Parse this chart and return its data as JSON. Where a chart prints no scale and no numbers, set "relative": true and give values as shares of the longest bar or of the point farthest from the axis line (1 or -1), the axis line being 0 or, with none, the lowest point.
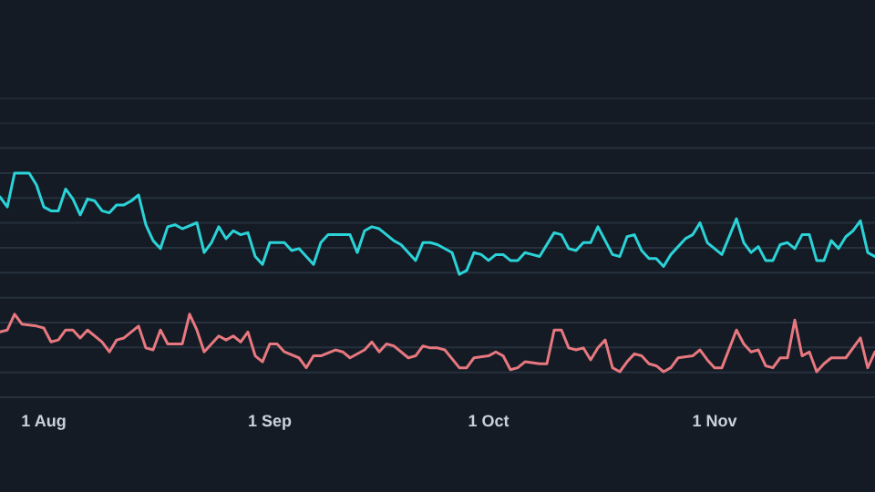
{
  "chart_data": {
    "type": "line",
    "relative": true,
    "grid": "y",
    "marker": "none",
    "line_style": "solid",
    "xlim": [
      "--07-26",
      "--11-23"
    ],
    "xticks": [
      {
        "value": "--08-01",
        "label": "1 Aug"
      },
      {
        "value": "--09-01",
        "label": "1 Sep"
      },
      {
        "value": "--10-01",
        "label": "1 Oct"
      },
      {
        "value": "--11-01",
        "label": "1 Nov"
      }
    ],
    "tick_labels": "x",
    "series": [
      {
        "color": "#2bd3d8",
        "x": [
          "--07-26",
          "--07-27",
          "--07-28",
          "--07-30",
          "--07-31",
          "--08-01",
          "--08-02",
          "--08-03",
          "--08-04",
          "--08-05",
          "--08-06",
          "--08-07",
          "--08-08",
          "--08-09",
          "--08-10",
          "--08-11",
          "--08-12",
          "--08-13",
          "--08-14",
          "--08-15",
          "--08-16",
          "--08-17",
          "--08-18",
          "--08-19",
          "--08-20",
          "--08-22",
          "--08-23",
          "--08-24",
          "--08-25",
          "--08-26",
          "--08-27",
          "--08-28",
          "--08-29",
          "--08-30",
          "--08-31",
          "--09-01",
          "--09-03",
          "--09-04",
          "--09-05",
          "--09-06",
          "--09-07",
          "--09-08",
          "--09-09",
          "--09-11",
          "--09-12",
          "--09-13",
          "--09-14",
          "--09-15",
          "--09-16",
          "--09-18",
          "--09-19",
          "--09-21",
          "--09-22",
          "--09-23",
          "--09-24",
          "--09-26",
          "--09-27",
          "--09-28",
          "--09-29",
          "--09-30",
          "--10-01",
          "--10-02",
          "--10-03",
          "--10-04",
          "--10-05",
          "--10-06",
          "--10-07",
          "--10-08",
          "--10-10",
          "--10-11",
          "--10-12",
          "--10-13",
          "--10-14",
          "--10-15",
          "--10-16",
          "--10-17",
          "--10-18",
          "--10-19",
          "--10-20",
          "--10-21",
          "--10-22",
          "--10-23",
          "--10-24",
          "--10-25",
          "--10-26",
          "--10-28",
          "--10-29",
          "--10-30",
          "--10-31",
          "--11-02",
          "--11-04",
          "--11-05",
          "--11-06",
          "--11-07",
          "--11-08",
          "--11-09",
          "--11-10",
          "--11-11",
          "--11-12",
          "--11-13",
          "--11-14",
          "--11-15",
          "--11-16",
          "--11-17",
          "--11-18",
          "--11-19",
          "--11-20",
          "--11-21",
          "--11-22",
          "--11-23"
        ],
        "values": [
          0.88,
          0.83,
          1,
          1,
          0.94,
          0.83,
          0.81,
          0.81,
          0.92,
          0.87,
          0.79,
          0.87,
          0.86,
          0.81,
          0.8,
          0.84,
          0.84,
          0.86,
          0.89,
          0.74,
          0.66,
          0.62,
          0.73,
          0.74,
          0.72,
          0.75,
          0.6,
          0.65,
          0.73,
          0.67,
          0.71,
          0.69,
          0.7,
          0.58,
          0.54,
          0.65,
          0.65,
          0.61,
          0.62,
          0.58,
          0.54,
          0.65,
          0.69,
          0.69,
          0.69,
          0.6,
          0.71,
          0.73,
          0.72,
          0.66,
          0.64,
          0.56,
          0.65,
          0.65,
          0.64,
          0.6,
          0.49,
          0.51,
          0.6,
          0.59,
          0.56,
          0.59,
          0.59,
          0.56,
          0.56,
          0.6,
          0.59,
          0.58,
          0.7,
          0.69,
          0.62,
          0.61,
          0.65,
          0.65,
          0.73,
          0.66,
          0.59,
          0.58,
          0.68,
          0.69,
          0.61,
          0.57,
          0.57,
          0.53,
          0.59,
          0.67,
          0.69,
          0.75,
          0.65,
          0.59,
          0.77,
          0.65,
          0.6,
          0.63,
          0.56,
          0.56,
          0.64,
          0.65,
          0.62,
          0.69,
          0.69,
          0.56,
          0.56,
          0.66,
          0.62,
          0.68,
          0.71,
          0.76,
          0.6,
          0.58
        ]
      },
      {
        "color": "#e8787f",
        "x": [
          "--07-26",
          "--07-27",
          "--07-28",
          "--07-29",
          "--07-31",
          "--08-01",
          "--08-02",
          "--08-03",
          "--08-04",
          "--08-05",
          "--08-06",
          "--08-07",
          "--08-09",
          "--08-10",
          "--08-11",
          "--08-12",
          "--08-14",
          "--08-15",
          "--08-16",
          "--08-17",
          "--08-18",
          "--08-19",
          "--08-20",
          "--08-21",
          "--08-22",
          "--08-23",
          "--08-24",
          "--08-25",
          "--08-26",
          "--08-27",
          "--08-28",
          "--08-29",
          "--08-30",
          "--08-31",
          "--09-01",
          "--09-02",
          "--09-03",
          "--09-05",
          "--09-06",
          "--09-07",
          "--09-08",
          "--09-10",
          "--09-11",
          "--09-12",
          "--09-14",
          "--09-15",
          "--09-16",
          "--09-17",
          "--09-18",
          "--09-20",
          "--09-21",
          "--09-22",
          "--09-23",
          "--09-24",
          "--09-25",
          "--09-27",
          "--09-28",
          "--09-29",
          "--10-01",
          "--10-02",
          "--10-03",
          "--10-04",
          "--10-05",
          "--10-06",
          "--10-08",
          "--10-09",
          "--10-10",
          "--10-11",
          "--10-12",
          "--10-13",
          "--10-14",
          "--10-15",
          "--10-16",
          "--10-17",
          "--10-18",
          "--10-19",
          "--10-20",
          "--10-21",
          "--10-22",
          "--10-23",
          "--10-24",
          "--10-25",
          "--10-26",
          "--10-27",
          "--10-29",
          "--10-30",
          "--10-31",
          "--11-01",
          "--11-02",
          "--11-04",
          "--11-05",
          "--11-06",
          "--11-07",
          "--11-08",
          "--11-09",
          "--11-10",
          "--11-11",
          "--11-12",
          "--11-13",
          "--11-14",
          "--11-15",
          "--11-16",
          "--11-17",
          "--11-18",
          "--11-19",
          "--11-21",
          "--11-22",
          "--11-23"
        ],
        "values": [
          0.2,
          0.21,
          0.29,
          0.24,
          0.23,
          0.22,
          0.15,
          0.16,
          0.21,
          0.21,
          0.17,
          0.21,
          0.15,
          0.1,
          0.16,
          0.17,
          0.23,
          0.12,
          0.11,
          0.21,
          0.14,
          0.14,
          0.14,
          0.29,
          0.21,
          0.1,
          0.14,
          0.18,
          0.16,
          0.18,
          0.15,
          0.2,
          0.08,
          0.05,
          0.14,
          0.14,
          0.1,
          0.07,
          0.02,
          0.08,
          0.08,
          0.11,
          0.1,
          0.07,
          0.11,
          0.15,
          0.1,
          0.14,
          0.13,
          0.07,
          0.08,
          0.13,
          0.12,
          0.12,
          0.11,
          0.02,
          0.02,
          0.07,
          0.08,
          0.1,
          0.08,
          0.01,
          0.02,
          0.05,
          0.04,
          0.04,
          0.21,
          0.21,
          0.12,
          0.11,
          0.12,
          0.06,
          0.12,
          0.16,
          0.02,
          0,
          0.05,
          0.09,
          0.08,
          0.04,
          0.03,
          0,
          0.02,
          0.07,
          0.08,
          0.11,
          0.06,
          0.02,
          0.02,
          0.21,
          0.14,
          0.1,
          0.11,
          0.03,
          0.02,
          0.07,
          0.07,
          0.26,
          0.08,
          0.1,
          0,
          0.04,
          0.07,
          0.07,
          0.07,
          0.17,
          0.02,
          0.1
        ]
      }
    ]
  }
}
